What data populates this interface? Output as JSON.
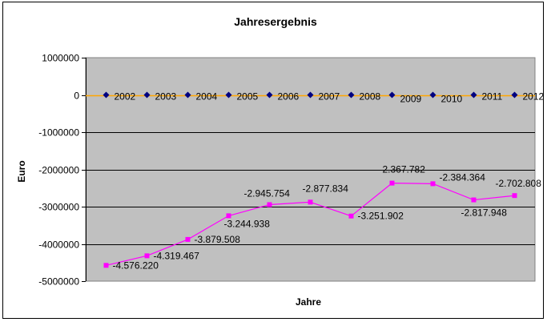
{
  "chart_data": {
    "type": "line",
    "title": "Jahresergebnis",
    "xlabel": "Jahre",
    "ylabel": "Euro",
    "ylim": [
      -5000000,
      1000000
    ],
    "yticks": [
      1000000,
      0,
      -1000000,
      -2000000,
      -3000000,
      -4000000,
      -5000000
    ],
    "ytick_labels": [
      "1000000",
      "0",
      "-1000000",
      "-2000000",
      "-3000000",
      "-4000000",
      "-5000000"
    ],
    "categories": [
      "2002",
      "2003",
      "2004",
      "2005",
      "2006",
      "2007",
      "2008",
      "2009",
      "2010",
      "2011",
      "2012"
    ],
    "series": [
      {
        "color": "#ff00ff",
        "values": [
          -4576220,
          -4319467,
          -3879508,
          -3244938,
          -2945754,
          -2877834,
          -3251902,
          -2367782,
          -2384364,
          -2817948,
          -2702808
        ],
        "labels": [
          "-4.576.220",
          "-4.319.467",
          "-3.879.508",
          "-3.244.938",
          "-2.945.754",
          "-2.877.834",
          "-3.251.902",
          "-2.367.782",
          "-2.384.364",
          "-2.817.948",
          "-2.702.808"
        ]
      },
      {
        "color": "#000080",
        "values": [
          0,
          0,
          0,
          0,
          0,
          0,
          0,
          0,
          0,
          0,
          0
        ]
      }
    ],
    "plot_background": "#c0c0c0",
    "gridlines": true,
    "zero_line_color": "#ffa500"
  }
}
